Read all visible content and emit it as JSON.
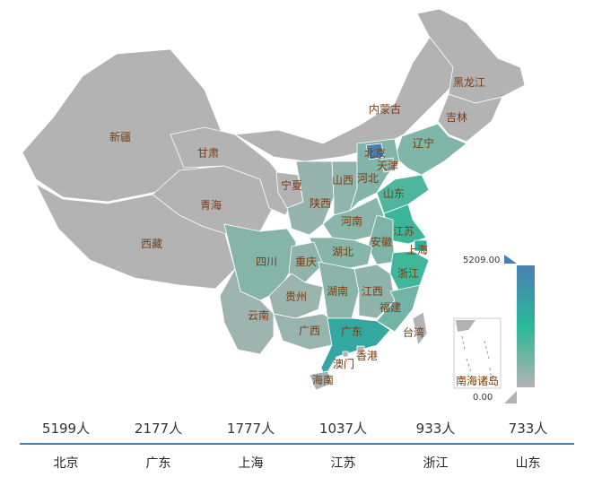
{
  "map": {
    "provinces": [
      {
        "name": "新疆",
        "value": 0
      },
      {
        "name": "西藏",
        "value": 0
      },
      {
        "name": "青海",
        "value": 0
      },
      {
        "name": "甘肃",
        "value": 0
      },
      {
        "name": "内蒙古",
        "value": 0
      },
      {
        "name": "黑龙江",
        "value": 0
      },
      {
        "name": "吉林",
        "value": 0
      },
      {
        "name": "辽宁",
        "value": 180
      },
      {
        "name": "宁夏",
        "value": 0
      },
      {
        "name": "陕西",
        "value": 60
      },
      {
        "name": "山西",
        "value": 80
      },
      {
        "name": "河北",
        "value": 170
      },
      {
        "name": "北京",
        "value": 5199
      },
      {
        "name": "天津",
        "value": 100
      },
      {
        "name": "山东",
        "value": 733
      },
      {
        "name": "河南",
        "value": 120
      },
      {
        "name": "江苏",
        "value": 1037
      },
      {
        "name": "安徽",
        "value": 200
      },
      {
        "name": "上海",
        "value": 1777
      },
      {
        "name": "湖北",
        "value": 130
      },
      {
        "name": "浙江",
        "value": 933
      },
      {
        "name": "四川",
        "value": 150
      },
      {
        "name": "重庆",
        "value": 90
      },
      {
        "name": "贵州",
        "value": 40
      },
      {
        "name": "湖南",
        "value": 110
      },
      {
        "name": "江西",
        "value": 90
      },
      {
        "name": "福建",
        "value": 300
      },
      {
        "name": "云南",
        "value": 30
      },
      {
        "name": "广西",
        "value": 50
      },
      {
        "name": "广东",
        "value": 2177
      },
      {
        "name": "香港",
        "value": 0
      },
      {
        "name": "澳门",
        "value": 0
      },
      {
        "name": "台湾",
        "value": 0
      },
      {
        "name": "海南",
        "value": 10
      }
    ],
    "inset_label": "南海诸岛"
  },
  "visual_map": {
    "max_label": "5209.00",
    "min_label": "0.00",
    "max": 5209,
    "min": 0
  },
  "colors": {
    "low": "#b3b3b3",
    "mid": "#2bb897",
    "high": "#4a7fb5",
    "divider": "#4a7faf",
    "label": "#7a3b10"
  },
  "ranking": [
    {
      "name": "北京",
      "value": "5199人"
    },
    {
      "name": "广东",
      "value": "2177人"
    },
    {
      "name": "上海",
      "value": "1777人"
    },
    {
      "name": "江苏",
      "value": "1037人"
    },
    {
      "name": "浙江",
      "value": "933人"
    },
    {
      "name": "山东",
      "value": "733人"
    }
  ]
}
